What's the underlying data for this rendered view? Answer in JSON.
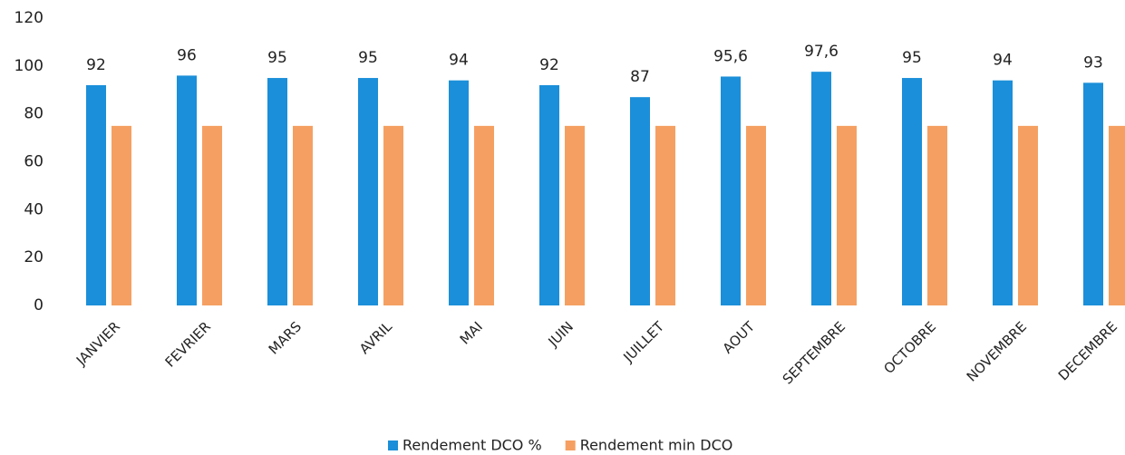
{
  "chart_data": {
    "type": "bar",
    "categories": [
      "JANVIER",
      "FEVRIER",
      "MARS",
      "AVRIL",
      "MAI",
      "JUIN",
      "JUILLET",
      "AOUT",
      "SEPTEMBRE",
      "OCTOBRE",
      "NOVEMBRE",
      "DECEMBRE"
    ],
    "series": [
      {
        "name": "Rendement DCO %",
        "color": "#1b8fd9",
        "values": [
          92,
          96,
          95,
          95,
          94,
          92,
          87,
          95.6,
          97.6,
          95,
          94,
          93
        ],
        "value_labels": [
          "92",
          "96",
          "95",
          "95",
          "94",
          "92",
          "87",
          "95,6",
          "97,6",
          "95",
          "94",
          "93"
        ]
      },
      {
        "name": "Rendement min DCO",
        "color": "#f5a062",
        "values": [
          75,
          75,
          75,
          75,
          75,
          75,
          75,
          75,
          75,
          75,
          75,
          75
        ]
      }
    ],
    "ylim": [
      0,
      120
    ],
    "yticks": [
      0,
      20,
      40,
      60,
      80,
      100,
      120
    ],
    "grid": false,
    "legend": "bottom"
  }
}
